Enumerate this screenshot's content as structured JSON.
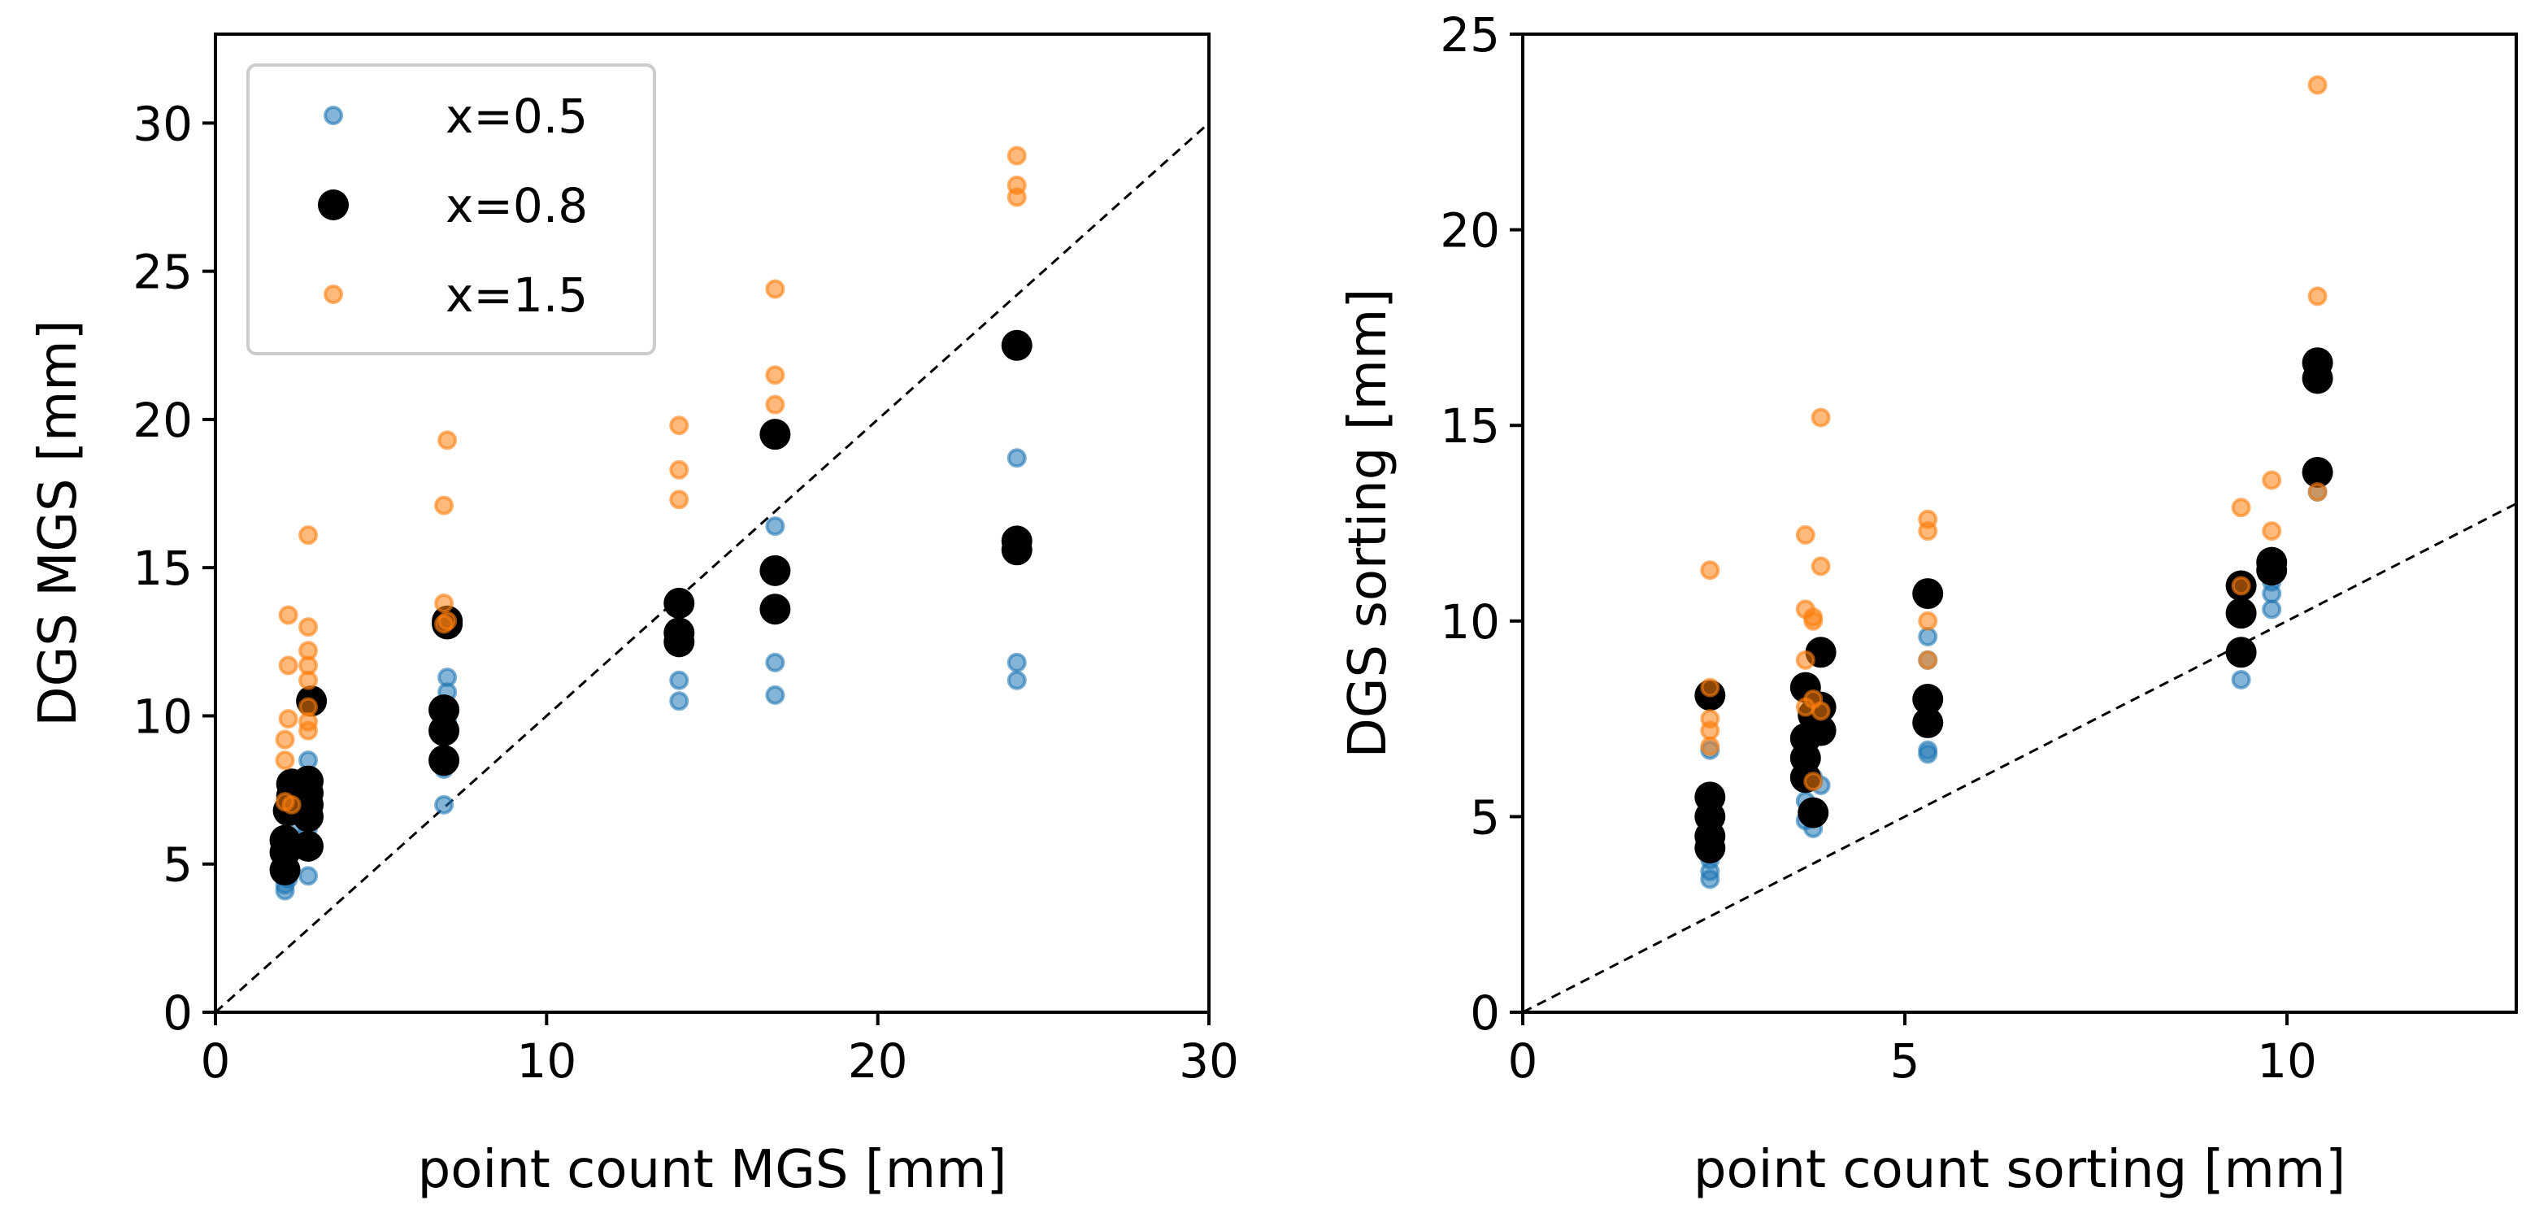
{
  "chart_data": [
    {
      "type": "scatter",
      "title": "",
      "xlabel": "point count MGS [mm]",
      "ylabel": "DGS MGS [mm]",
      "xlim": [
        0,
        30
      ],
      "ylim": [
        0,
        33
      ],
      "xticks": [
        0,
        10,
        20,
        30
      ],
      "yticks": [
        0,
        5,
        10,
        15,
        20,
        25,
        30
      ],
      "xtick_labels": [
        "0",
        "10",
        "20",
        "30"
      ],
      "ytick_labels": [
        "0",
        "5",
        "10",
        "15",
        "20",
        "25",
        "30"
      ],
      "grid": false,
      "identity_line": true,
      "legend": {
        "placement": "top-left",
        "entries": [
          "x=0.5",
          "x=0.8",
          "x=1.5"
        ]
      },
      "series": [
        {
          "name": "x=0.5",
          "color": "#1f77b4",
          "x": [
            2.1,
            2.1,
            2.2,
            2.2,
            2.3,
            2.3,
            2.8,
            2.8,
            2.8,
            2.8,
            6.9,
            6.9,
            7.0,
            7.0,
            7.0,
            14.0,
            14.0,
            14.0,
            16.9,
            16.9,
            16.9,
            24.2,
            24.2,
            24.2,
            24.2
          ],
          "y": [
            4.1,
            4.3,
            4.5,
            5.0,
            5.8,
            6.2,
            4.6,
            6.2,
            7.3,
            8.5,
            7.0,
            8.2,
            9.8,
            10.8,
            11.3,
            10.5,
            11.2,
            12.5,
            10.7,
            11.8,
            16.4,
            11.2,
            11.8,
            15.8,
            18.7
          ]
        },
        {
          "name": "x=0.8",
          "color": "#000000",
          "x": [
            2.1,
            2.1,
            2.1,
            2.2,
            2.3,
            2.3,
            2.8,
            2.8,
            2.8,
            2.8,
            2.8,
            2.9,
            6.9,
            6.9,
            6.9,
            7.0,
            7.0,
            14.0,
            14.0,
            14.0,
            16.9,
            16.9,
            16.9,
            24.2,
            24.2,
            24.2
          ],
          "y": [
            4.8,
            5.4,
            5.8,
            6.8,
            7.3,
            7.7,
            5.6,
            6.6,
            7.0,
            7.4,
            7.8,
            10.5,
            8.5,
            9.5,
            10.2,
            13.1,
            13.2,
            12.5,
            12.8,
            13.8,
            13.6,
            14.9,
            19.5,
            15.6,
            15.9,
            22.5
          ]
        },
        {
          "name": "x=1.5",
          "color": "#ff7f0e",
          "x": [
            2.1,
            2.1,
            2.1,
            2.2,
            2.2,
            2.2,
            2.3,
            2.8,
            2.8,
            2.8,
            2.8,
            2.8,
            2.8,
            2.8,
            2.8,
            6.9,
            6.9,
            6.9,
            7.0,
            7.0,
            14.0,
            14.0,
            14.0,
            16.9,
            16.9,
            16.9,
            24.2,
            24.2,
            24.2
          ],
          "y": [
            7.1,
            8.5,
            9.2,
            9.9,
            11.7,
            13.4,
            7.0,
            9.5,
            9.8,
            10.3,
            11.2,
            11.7,
            12.2,
            13.0,
            16.1,
            13.1,
            13.8,
            17.1,
            19.3,
            13.2,
            17.3,
            18.3,
            19.8,
            20.5,
            21.5,
            24.4,
            27.5,
            27.9,
            28.9
          ]
        }
      ]
    },
    {
      "type": "scatter",
      "title": "",
      "xlabel": "point count sorting [mm]",
      "ylabel": "DGS sorting [mm]",
      "xlim": [
        0,
        13
      ],
      "ylim": [
        0,
        25
      ],
      "xticks": [
        0,
        5,
        10
      ],
      "yticks": [
        0,
        5,
        10,
        15,
        20,
        25
      ],
      "xtick_labels": [
        "0",
        "5",
        "10"
      ],
      "ytick_labels": [
        "0",
        "5",
        "10",
        "15",
        "20",
        "25"
      ],
      "grid": false,
      "identity_line": true,
      "series": [
        {
          "name": "x=0.5",
          "color": "#1f77b4",
          "x": [
            2.45,
            2.45,
            2.45,
            2.45,
            3.7,
            3.7,
            3.8,
            3.8,
            3.8,
            3.9,
            5.3,
            5.3,
            5.3,
            5.3,
            9.4,
            9.4,
            9.4,
            9.8,
            9.8,
            9.8,
            10.4,
            10.4
          ],
          "y": [
            3.4,
            3.6,
            3.9,
            6.7,
            4.9,
            5.4,
            4.7,
            5.9,
            6.0,
            5.8,
            6.6,
            6.7,
            9.0,
            9.6,
            8.5,
            9.2,
            10.9,
            10.3,
            10.7,
            11.0,
            13.3,
            16.5
          ]
        },
        {
          "name": "x=0.8",
          "color": "#000000",
          "x": [
            2.45,
            2.45,
            2.45,
            2.45,
            2.45,
            3.7,
            3.7,
            3.7,
            3.7,
            3.8,
            3.8,
            3.9,
            3.9,
            3.9,
            5.3,
            5.3,
            5.3,
            9.4,
            9.4,
            9.4,
            9.8,
            9.8,
            10.4,
            10.4,
            10.4
          ],
          "y": [
            4.2,
            4.5,
            5.0,
            5.5,
            8.1,
            6.0,
            6.5,
            7.0,
            8.3,
            5.1,
            7.6,
            7.2,
            7.8,
            9.2,
            7.4,
            8.0,
            10.7,
            9.2,
            10.2,
            10.9,
            11.3,
            11.5,
            13.8,
            16.2,
            16.6
          ]
        },
        {
          "name": "x=1.5",
          "color": "#ff7f0e",
          "x": [
            2.45,
            2.45,
            2.45,
            2.45,
            2.45,
            3.7,
            3.7,
            3.7,
            3.7,
            3.8,
            3.8,
            3.8,
            3.8,
            3.9,
            3.9,
            3.9,
            5.3,
            5.3,
            5.3,
            5.3,
            9.4,
            9.4,
            9.8,
            9.8,
            10.4,
            10.4,
            10.4
          ],
          "y": [
            6.8,
            7.2,
            7.5,
            8.3,
            11.3,
            7.8,
            9.0,
            10.3,
            12.2,
            5.9,
            8.0,
            10.1,
            10.0,
            11.4,
            15.2,
            7.7,
            9.0,
            10.0,
            12.3,
            12.6,
            12.9,
            10.9,
            12.3,
            13.6,
            13.3,
            18.3,
            23.7
          ]
        }
      ]
    }
  ]
}
